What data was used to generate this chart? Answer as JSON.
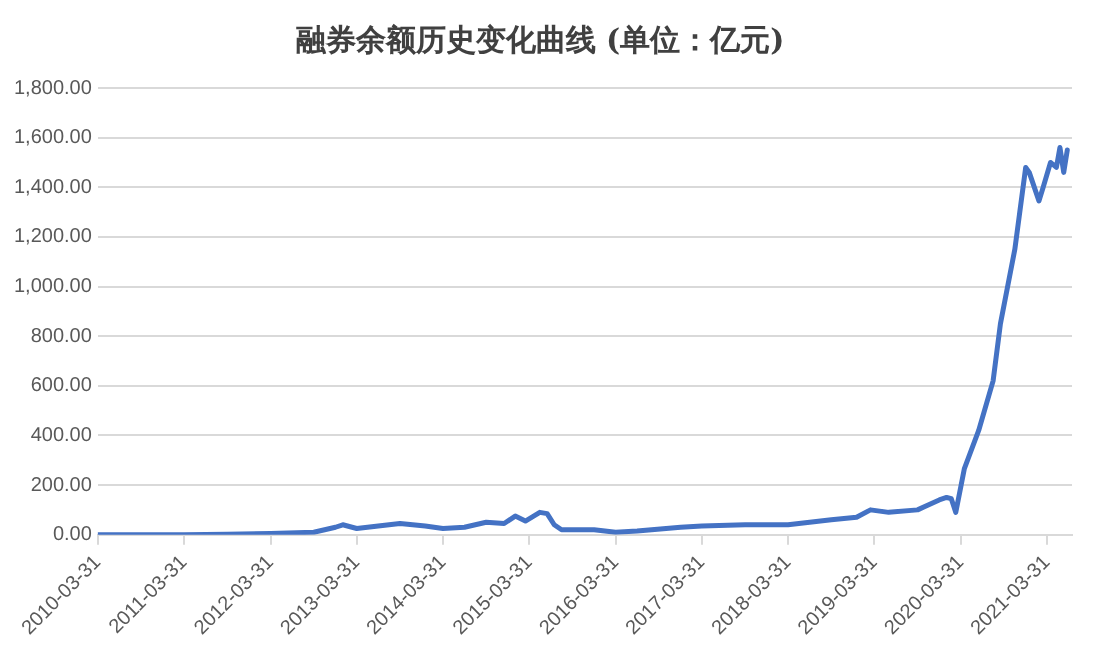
{
  "chart_data": {
    "type": "line",
    "title": "融券余额历史变化曲线 (单位：亿元)",
    "x": [
      "2010-03-31",
      "2011-03-31",
      "2011-09-30",
      "2012-03-31",
      "2012-09-30",
      "2012-12-31",
      "2013-01-31",
      "2013-03-31",
      "2013-06-30",
      "2013-09-30",
      "2014-01-15",
      "2014-03-31",
      "2014-06-30",
      "2014-09-30",
      "2014-12-15",
      "2015-01-31",
      "2015-03-15",
      "2015-05-15",
      "2015-06-15",
      "2015-07-15",
      "2015-08-15",
      "2015-12-31",
      "2016-03-31",
      "2016-06-30",
      "2016-12-31",
      "2017-03-31",
      "2017-09-30",
      "2018-03-31",
      "2018-09-30",
      "2019-01-15",
      "2019-03-15",
      "2019-05-31",
      "2019-09-30",
      "2019-12-31",
      "2020-01-31",
      "2020-02-20",
      "2020-03-10",
      "2020-04-15",
      "2020-06-15",
      "2020-08-15",
      "2020-09-15",
      "2020-11-15",
      "2020-12-31",
      "2021-01-15",
      "2021-02-25",
      "2021-03-15",
      "2021-04-15",
      "2021-05-10",
      "2021-05-25",
      "2021-06-10",
      "2021-06-25"
    ],
    "series": [
      {
        "color": "#4472c4",
        "values": [
          0,
          0,
          2,
          5,
          10,
          30,
          40,
          25,
          35,
          45,
          35,
          25,
          30,
          50,
          45,
          75,
          55,
          90,
          85,
          40,
          20,
          20,
          10,
          15,
          30,
          35,
          40,
          40,
          60,
          70,
          100,
          90,
          100,
          140,
          150,
          145,
          90,
          265,
          420,
          620,
          850,
          1150,
          1480,
          1460,
          1345,
          1400,
          1500,
          1480,
          1560,
          1460,
          1550
        ]
      }
    ],
    "xlim": [
      "2010-03-31",
      "2021-07-15"
    ],
    "xticks": [
      "2010-03-31",
      "2011-03-31",
      "2012-03-31",
      "2013-03-31",
      "2014-03-31",
      "2015-03-31",
      "2016-03-31",
      "2017-03-31",
      "2018-03-31",
      "2019-03-31",
      "2020-03-31",
      "2021-03-31"
    ],
    "ylim": [
      0,
      1800
    ],
    "yticks": [
      {
        "value": 0,
        "label": "0.00"
      },
      {
        "value": 200,
        "label": "200.00"
      },
      {
        "value": 400,
        "label": "400.00"
      },
      {
        "value": 600,
        "label": "600.00"
      },
      {
        "value": 800,
        "label": "800.00"
      },
      {
        "value": 1000,
        "label": "1,000.00"
      },
      {
        "value": 1200,
        "label": "1,200.00"
      },
      {
        "value": 1400,
        "label": "1,400.00"
      },
      {
        "value": 1600,
        "label": "1,600.00"
      },
      {
        "value": 1800,
        "label": "1,800.00"
      }
    ],
    "grid": "y",
    "legend": false,
    "marker": "none",
    "line_style": "solid"
  }
}
